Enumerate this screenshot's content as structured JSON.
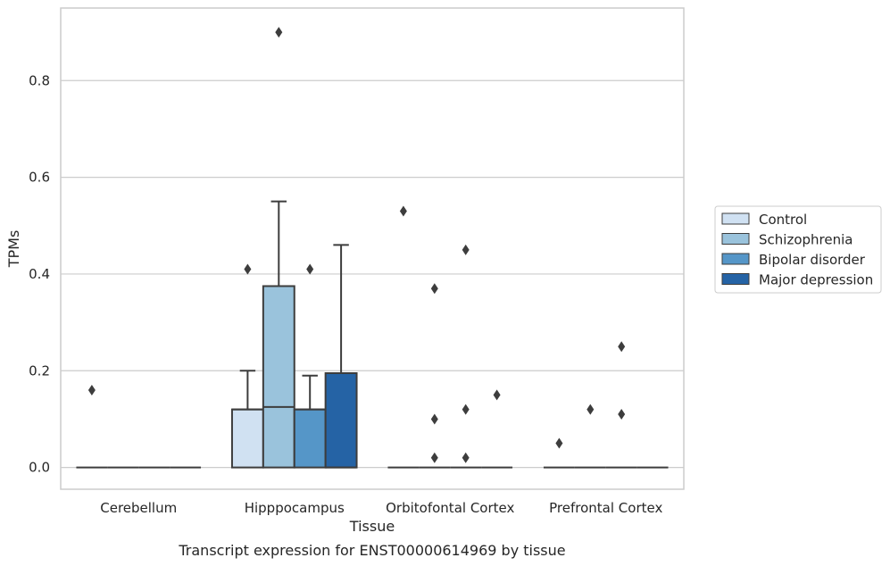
{
  "chart_data": {
    "type": "box",
    "xlabel": "Tissue",
    "ylabel": "TPMs",
    "caption": "Transcript expression for ENST00000614969 by tissue",
    "categories": [
      "Cerebellum",
      "Hipppocampus",
      "Orbitofontal Cortex",
      "Prefrontal Cortex"
    ],
    "ylim": [
      -0.045,
      0.95
    ],
    "yticks": [
      0.0,
      0.2,
      0.4,
      0.6,
      0.8
    ],
    "ytick_labels": [
      "0.0",
      "0.2",
      "0.4",
      "0.6",
      "0.8"
    ],
    "grid": "horizontal",
    "legend_position": "right",
    "series": [
      {
        "name": "Control",
        "color": "#d0e1f2",
        "boxes": [
          {
            "q1": 0.0,
            "median": 0.0,
            "q3": 0.0,
            "whisker_low": 0.0,
            "whisker_high": 0.0,
            "outliers": [
              0.16
            ]
          },
          {
            "q1": 0.0,
            "median": 0.12,
            "q3": 0.12,
            "whisker_low": 0.0,
            "whisker_high": 0.2,
            "outliers": [
              0.41
            ]
          },
          {
            "q1": 0.0,
            "median": 0.0,
            "q3": 0.0,
            "whisker_low": 0.0,
            "whisker_high": 0.0,
            "outliers": [
              0.53
            ]
          },
          {
            "q1": 0.0,
            "median": 0.0,
            "q3": 0.0,
            "whisker_low": 0.0,
            "whisker_high": 0.0,
            "outliers": [
              0.05
            ]
          }
        ]
      },
      {
        "name": "Schizophrenia",
        "color": "#9ac3dc",
        "boxes": [
          {
            "q1": 0.0,
            "median": 0.0,
            "q3": 0.0,
            "whisker_low": 0.0,
            "whisker_high": 0.0,
            "outliers": []
          },
          {
            "q1": 0.0,
            "median": 0.125,
            "q3": 0.375,
            "whisker_low": 0.0,
            "whisker_high": 0.55,
            "outliers": [
              0.9
            ]
          },
          {
            "q1": 0.0,
            "median": 0.0,
            "q3": 0.0,
            "whisker_low": 0.0,
            "whisker_high": 0.0,
            "outliers": [
              0.37,
              0.1,
              0.02
            ]
          },
          {
            "q1": 0.0,
            "median": 0.0,
            "q3": 0.0,
            "whisker_low": 0.0,
            "whisker_high": 0.0,
            "outliers": [
              0.12
            ]
          }
        ]
      },
      {
        "name": "Bipolar disorder",
        "color": "#5596c8",
        "boxes": [
          {
            "q1": 0.0,
            "median": 0.0,
            "q3": 0.0,
            "whisker_low": 0.0,
            "whisker_high": 0.0,
            "outliers": []
          },
          {
            "q1": 0.0,
            "median": 0.12,
            "q3": 0.12,
            "whisker_low": 0.0,
            "whisker_high": 0.19,
            "outliers": [
              0.41
            ]
          },
          {
            "q1": 0.0,
            "median": 0.0,
            "q3": 0.0,
            "whisker_low": 0.0,
            "whisker_high": 0.0,
            "outliers": [
              0.45,
              0.12,
              0.02
            ]
          },
          {
            "q1": 0.0,
            "median": 0.0,
            "q3": 0.0,
            "whisker_low": 0.0,
            "whisker_high": 0.0,
            "outliers": [
              0.25,
              0.11
            ]
          }
        ]
      },
      {
        "name": "Major depression",
        "color": "#2563a5",
        "boxes": [
          {
            "q1": 0.0,
            "median": 0.0,
            "q3": 0.0,
            "whisker_low": 0.0,
            "whisker_high": 0.0,
            "outliers": []
          },
          {
            "q1": 0.0,
            "median": 0.0,
            "q3": 0.195,
            "whisker_low": 0.0,
            "whisker_high": 0.46,
            "outliers": []
          },
          {
            "q1": 0.0,
            "median": 0.0,
            "q3": 0.0,
            "whisker_low": 0.0,
            "whisker_high": 0.0,
            "outliers": [
              0.15
            ]
          },
          {
            "q1": 0.0,
            "median": 0.0,
            "q3": 0.0,
            "whisker_low": 0.0,
            "whisker_high": 0.0,
            "outliers": []
          }
        ]
      }
    ]
  }
}
